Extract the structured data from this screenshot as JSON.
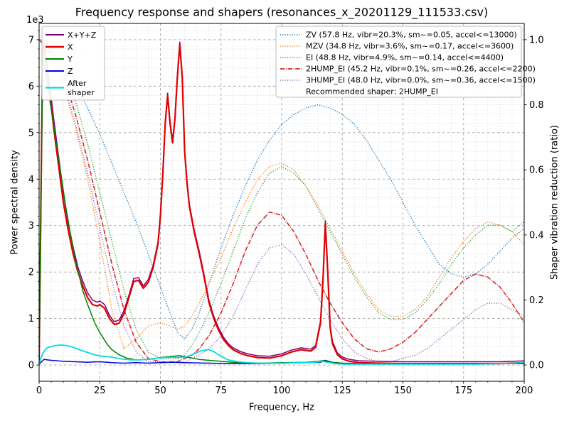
{
  "chart_data": {
    "type": "line",
    "title": "Frequency response and shapers (resonances_x_20201129_111533.csv)",
    "xlabel": "Frequency, Hz",
    "ylabel_left": "Power spectral density",
    "ylabel_right": "Shaper vibration reduction (ratio)",
    "offset_text": "1e3",
    "xlim": [
      0,
      200
    ],
    "ylim_left": [
      -0.35,
      7.35
    ],
    "ylim_right": [
      -0.05,
      1.05
    ],
    "xticks": [
      0,
      25,
      50,
      75,
      100,
      125,
      150,
      175,
      200
    ],
    "yticks_left": [
      0,
      1,
      2,
      3,
      4,
      5,
      6,
      7
    ],
    "yticks_right": [
      0.0,
      0.2,
      0.4,
      0.6,
      0.8,
      1.0
    ],
    "grid": true,
    "legend_right_footer": "Recommended shaper: 2HUMP_EI",
    "psd_series": [
      {
        "name": "X+Y+Z",
        "color": "#800080",
        "width": 1.5,
        "dash": "",
        "x": [
          0,
          1.5,
          2.5,
          4,
          5,
          6,
          8,
          10,
          12,
          14,
          16,
          18,
          20,
          22,
          24,
          25,
          27,
          29,
          31,
          33,
          35,
          37,
          39,
          41,
          43,
          45,
          47,
          49,
          50,
          51,
          52,
          53,
          54,
          55,
          56,
          57,
          58,
          59,
          60,
          61,
          62,
          64,
          66,
          68,
          70,
          72,
          74,
          76,
          78,
          80,
          83,
          86,
          90,
          95,
          100,
          104,
          108,
          112,
          114,
          116,
          117,
          118,
          119,
          120,
          121,
          123,
          125,
          128,
          132,
          140,
          150,
          160,
          170,
          180,
          190,
          200
        ],
        "y": [
          0.15,
          7.0,
          6.75,
          6.2,
          5.75,
          5.3,
          4.5,
          3.7,
          3.05,
          2.55,
          2.1,
          1.8,
          1.55,
          1.4,
          1.35,
          1.38,
          1.3,
          1.07,
          0.93,
          0.97,
          1.17,
          1.5,
          1.86,
          1.88,
          1.7,
          1.84,
          2.15,
          2.65,
          3.25,
          4.15,
          5.25,
          5.85,
          5.25,
          4.83,
          5.35,
          6.25,
          6.95,
          6.25,
          4.65,
          3.95,
          3.45,
          2.9,
          2.45,
          1.95,
          1.4,
          1.05,
          0.8,
          0.6,
          0.46,
          0.37,
          0.29,
          0.24,
          0.2,
          0.19,
          0.24,
          0.32,
          0.37,
          0.34,
          0.42,
          0.95,
          1.85,
          3.1,
          2.05,
          0.85,
          0.5,
          0.26,
          0.17,
          0.12,
          0.09,
          0.08,
          0.07,
          0.07,
          0.07,
          0.07,
          0.07,
          0.09
        ]
      },
      {
        "name": "X",
        "color": "#e00000",
        "width": 2.2,
        "dash": "",
        "x": [
          0,
          1.5,
          2.5,
          4,
          5,
          6,
          8,
          10,
          12,
          14,
          16,
          18,
          20,
          22,
          24,
          25,
          27,
          29,
          31,
          33,
          35,
          37,
          39,
          41,
          43,
          45,
          47,
          49,
          50,
          51,
          52,
          53,
          54,
          55,
          56,
          57,
          58,
          59,
          60,
          61,
          62,
          64,
          66,
          68,
          70,
          72,
          74,
          76,
          78,
          80,
          83,
          86,
          90,
          95,
          100,
          104,
          108,
          112,
          114,
          116,
          117,
          118,
          119,
          120,
          121,
          123,
          125,
          128,
          132,
          140,
          150,
          160,
          170,
          180,
          190,
          200
        ],
        "y": [
          0.1,
          6.9,
          6.6,
          6.0,
          5.6,
          5.1,
          4.3,
          3.5,
          2.9,
          2.4,
          2.0,
          1.7,
          1.45,
          1.3,
          1.27,
          1.3,
          1.22,
          1.0,
          0.87,
          0.9,
          1.1,
          1.45,
          1.8,
          1.82,
          1.65,
          1.78,
          2.1,
          2.6,
          3.2,
          4.1,
          5.2,
          5.8,
          5.2,
          4.78,
          5.3,
          6.2,
          6.9,
          6.2,
          4.6,
          3.9,
          3.4,
          2.85,
          2.4,
          1.9,
          1.35,
          1.0,
          0.75,
          0.55,
          0.42,
          0.33,
          0.25,
          0.2,
          0.16,
          0.15,
          0.2,
          0.28,
          0.33,
          0.3,
          0.38,
          0.9,
          1.8,
          3.05,
          2.0,
          0.8,
          0.45,
          0.22,
          0.13,
          0.08,
          0.05,
          0.04,
          0.03,
          0.03,
          0.03,
          0.03,
          0.03,
          0.05
        ]
      },
      {
        "name": "Y",
        "color": "#008000",
        "width": 1.5,
        "dash": "",
        "x": [
          0,
          1.5,
          3,
          5,
          7,
          9,
          11,
          13,
          15,
          18,
          20,
          23,
          25,
          28,
          30,
          33,
          36,
          40,
          45,
          50,
          55,
          58,
          62,
          66,
          70,
          75,
          80,
          90,
          100,
          110,
          115,
          118,
          121,
          125,
          135,
          150,
          170,
          185,
          200
        ],
        "y": [
          0.05,
          6.6,
          6.2,
          5.5,
          4.8,
          4.1,
          3.4,
          2.8,
          2.25,
          1.6,
          1.3,
          0.9,
          0.7,
          0.45,
          0.33,
          0.22,
          0.15,
          0.11,
          0.12,
          0.16,
          0.19,
          0.2,
          0.16,
          0.12,
          0.1,
          0.08,
          0.06,
          0.04,
          0.05,
          0.06,
          0.08,
          0.1,
          0.06,
          0.04,
          0.03,
          0.03,
          0.03,
          0.03,
          0.04
        ]
      },
      {
        "name": "Z",
        "color": "#0000e0",
        "width": 1.5,
        "dash": "",
        "x": [
          0,
          2,
          5,
          10,
          15,
          20,
          25,
          30,
          35,
          40,
          45,
          50,
          55,
          60,
          70,
          80,
          90,
          100,
          110,
          116,
          118,
          121,
          130,
          145,
          160,
          180,
          200
        ],
        "y": [
          0.02,
          0.12,
          0.1,
          0.08,
          0.07,
          0.06,
          0.07,
          0.05,
          0.04,
          0.05,
          0.04,
          0.05,
          0.06,
          0.05,
          0.04,
          0.03,
          0.03,
          0.04,
          0.05,
          0.06,
          0.09,
          0.04,
          0.03,
          0.03,
          0.03,
          0.03,
          0.03
        ]
      },
      {
        "name": "After\nshaper",
        "color": "#00dede",
        "width": 1.8,
        "dash": "",
        "x": [
          0,
          1.5,
          3,
          5,
          7,
          9,
          11,
          13,
          15,
          17,
          20,
          23,
          26,
          30,
          34,
          38,
          42,
          46,
          49,
          52,
          55,
          58,
          61,
          64,
          66,
          68,
          70,
          72,
          75,
          78,
          82,
          86,
          90,
          100,
          108,
          114,
          117,
          119,
          122,
          126,
          135,
          150,
          165,
          180,
          190,
          196,
          200
        ],
        "y": [
          0.03,
          0.25,
          0.36,
          0.4,
          0.42,
          0.43,
          0.42,
          0.4,
          0.36,
          0.32,
          0.27,
          0.22,
          0.19,
          0.17,
          0.13,
          0.11,
          0.11,
          0.13,
          0.15,
          0.16,
          0.17,
          0.16,
          0.18,
          0.24,
          0.29,
          0.32,
          0.33,
          0.29,
          0.19,
          0.11,
          0.07,
          0.05,
          0.04,
          0.04,
          0.05,
          0.06,
          0.08,
          0.06,
          0.03,
          0.02,
          0.02,
          0.02,
          0.02,
          0.02,
          0.03,
          0.04,
          0.05
        ]
      }
    ],
    "shaper_series": [
      {
        "name": "ZV (57.8 Hz, vibr=20.3%, sm~=0.05, accel<=13000)",
        "color": "#1f77b4",
        "width": 1.4,
        "dash": "1.2 2.1",
        "x": [
          0,
          5,
          10,
          15,
          20,
          25,
          30,
          35,
          40,
          45,
          50,
          54,
          57,
          60,
          63,
          66,
          70,
          75,
          80,
          85,
          90,
          95,
          100,
          105,
          110,
          115,
          120,
          125,
          130,
          135,
          140,
          145,
          150,
          155,
          160,
          165,
          170,
          175,
          180,
          185,
          190,
          195,
          200
        ],
        "y": [
          1.0,
          0.97,
          0.92,
          0.86,
          0.79,
          0.71,
          0.62,
          0.53,
          0.44,
          0.34,
          0.24,
          0.16,
          0.1,
          0.08,
          0.11,
          0.16,
          0.25,
          0.36,
          0.46,
          0.55,
          0.63,
          0.69,
          0.74,
          0.77,
          0.79,
          0.8,
          0.79,
          0.77,
          0.74,
          0.69,
          0.63,
          0.57,
          0.5,
          0.43,
          0.37,
          0.31,
          0.28,
          0.27,
          0.28,
          0.31,
          0.35,
          0.39,
          0.42
        ]
      },
      {
        "name": "MZV (34.8 Hz, vibr=3.6%, sm~=0.17, accel<=3600)",
        "color": "#ff7f0e",
        "width": 1.4,
        "dash": "1.2 2.1",
        "x": [
          0,
          5,
          10,
          15,
          20,
          25,
          30,
          35,
          40,
          45,
          50,
          54,
          57,
          60,
          63,
          66,
          70,
          75,
          80,
          85,
          90,
          95,
          100,
          105,
          110,
          115,
          120,
          125,
          130,
          135,
          140,
          145,
          150,
          155,
          160,
          165,
          170,
          175,
          180,
          185,
          190,
          195,
          200
        ],
        "y": [
          1.0,
          0.95,
          0.86,
          0.73,
          0.57,
          0.38,
          0.17,
          0.05,
          0.08,
          0.12,
          0.13,
          0.12,
          0.11,
          0.12,
          0.15,
          0.19,
          0.25,
          0.33,
          0.42,
          0.5,
          0.57,
          0.61,
          0.62,
          0.6,
          0.55,
          0.49,
          0.42,
          0.35,
          0.28,
          0.22,
          0.17,
          0.15,
          0.15,
          0.17,
          0.21,
          0.27,
          0.33,
          0.38,
          0.42,
          0.44,
          0.43,
          0.41,
          0.37
        ]
      },
      {
        "name": "EI (48.8 Hz, vibr=4.9%, sm~=0.14, accel<=4400)",
        "color": "#2ca02c",
        "width": 1.4,
        "dash": "1.2 2.1",
        "x": [
          0,
          5,
          10,
          15,
          20,
          25,
          30,
          35,
          40,
          45,
          50,
          54,
          57,
          60,
          63,
          66,
          70,
          75,
          80,
          85,
          90,
          95,
          100,
          105,
          110,
          115,
          120,
          125,
          130,
          135,
          140,
          145,
          150,
          155,
          160,
          165,
          170,
          175,
          180,
          185,
          190,
          195,
          200
        ],
        "y": [
          1.0,
          0.97,
          0.91,
          0.81,
          0.68,
          0.53,
          0.38,
          0.23,
          0.11,
          0.04,
          0.02,
          0.02,
          0.02,
          0.03,
          0.06,
          0.1,
          0.16,
          0.25,
          0.35,
          0.45,
          0.53,
          0.59,
          0.61,
          0.59,
          0.55,
          0.48,
          0.41,
          0.34,
          0.27,
          0.21,
          0.16,
          0.14,
          0.14,
          0.16,
          0.2,
          0.25,
          0.31,
          0.36,
          0.4,
          0.43,
          0.43,
          0.41,
          0.44
        ]
      },
      {
        "name": "2HUMP_EI (45.2 Hz, vibr=0.1%, sm~=0.26, accel<=2200)",
        "color": "#d62728",
        "width": 1.6,
        "dash": "6.4 1.6 1 1.6",
        "x": [
          0,
          5,
          10,
          15,
          20,
          25,
          30,
          35,
          40,
          45,
          50,
          54,
          57,
          60,
          63,
          66,
          70,
          75,
          80,
          85,
          90,
          95,
          100,
          105,
          110,
          115,
          120,
          125,
          130,
          135,
          140,
          145,
          150,
          155,
          160,
          165,
          170,
          175,
          180,
          185,
          190,
          195,
          200
        ],
        "y": [
          1.0,
          0.96,
          0.89,
          0.77,
          0.63,
          0.47,
          0.31,
          0.17,
          0.07,
          0.02,
          0.01,
          0.01,
          0.01,
          0.02,
          0.03,
          0.05,
          0.09,
          0.16,
          0.25,
          0.35,
          0.43,
          0.47,
          0.46,
          0.41,
          0.34,
          0.26,
          0.19,
          0.13,
          0.08,
          0.05,
          0.04,
          0.05,
          0.07,
          0.1,
          0.14,
          0.18,
          0.22,
          0.26,
          0.28,
          0.27,
          0.24,
          0.19,
          0.13
        ]
      },
      {
        "name": "3HUMP_EI (48.0 Hz, vibr=0.0%, sm~=0.36, accel<=1500)",
        "color": "#9467bd",
        "width": 1.4,
        "dash": "1.2 2.1",
        "x": [
          0,
          5,
          10,
          15,
          20,
          25,
          30,
          35,
          40,
          45,
          50,
          54,
          57,
          60,
          63,
          66,
          70,
          75,
          80,
          85,
          90,
          95,
          100,
          105,
          110,
          115,
          120,
          125,
          130,
          135,
          140,
          145,
          150,
          155,
          160,
          165,
          170,
          175,
          180,
          185,
          190,
          195,
          200
        ],
        "y": [
          1.0,
          0.95,
          0.87,
          0.74,
          0.59,
          0.42,
          0.26,
          0.12,
          0.04,
          0.01,
          0.01,
          0.01,
          0.01,
          0.01,
          0.02,
          0.03,
          0.05,
          0.09,
          0.15,
          0.23,
          0.31,
          0.36,
          0.37,
          0.34,
          0.28,
          0.21,
          0.14,
          0.08,
          0.04,
          0.02,
          0.01,
          0.01,
          0.02,
          0.03,
          0.05,
          0.08,
          0.11,
          0.14,
          0.17,
          0.19,
          0.19,
          0.17,
          0.15
        ]
      }
    ]
  }
}
